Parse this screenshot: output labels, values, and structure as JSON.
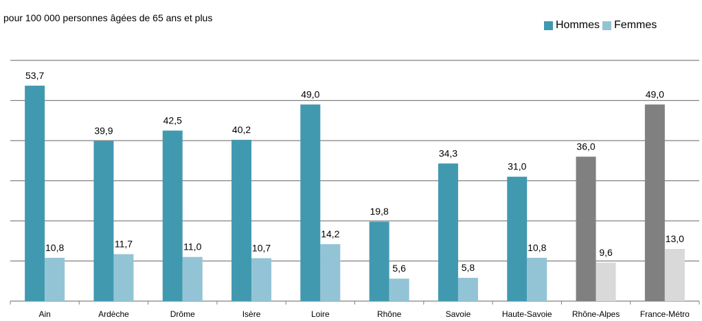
{
  "chart_data": {
    "type": "bar",
    "subtitle": "pour 100 000 personnes âgées de 65 ans et plus",
    "categories": [
      "Ain",
      "Ardèche",
      "Drôme",
      "Isère",
      "Loire",
      "Rhône",
      "Savoie",
      "Haute-Savoie",
      "Rhône-Alpes",
      "France-Métro"
    ],
    "series": [
      {
        "name": "Hommes",
        "values": [
          53.7,
          39.9,
          42.5,
          40.2,
          49.0,
          19.8,
          34.3,
          31.0,
          36.0,
          49.0
        ],
        "labels": [
          "53,7",
          "39,9",
          "42,5",
          "40,2",
          "49,0",
          "19,8",
          "34,3",
          "31,0",
          "36,0",
          "49,0"
        ]
      },
      {
        "name": "Femmes",
        "values": [
          10.8,
          11.7,
          11.0,
          10.7,
          14.2,
          5.6,
          5.8,
          10.8,
          9.6,
          13.0
        ],
        "labels": [
          "10,8",
          "11,7",
          "11,0",
          "10,7",
          "14,2",
          "5,6",
          "5,8",
          "10,8",
          "9,6",
          "13,0"
        ]
      }
    ],
    "ylim": [
      0,
      60
    ],
    "grid": true,
    "legend_position": "top-right",
    "colors": {
      "hommes": "#4199B0",
      "femmes": "#93C4D5",
      "hommes_highlight": "#808080",
      "femmes_highlight": "#D9D9D9",
      "grid": "#808080"
    },
    "highlight_categories": [
      "Rhône-Alpes",
      "France-Métro"
    ]
  }
}
